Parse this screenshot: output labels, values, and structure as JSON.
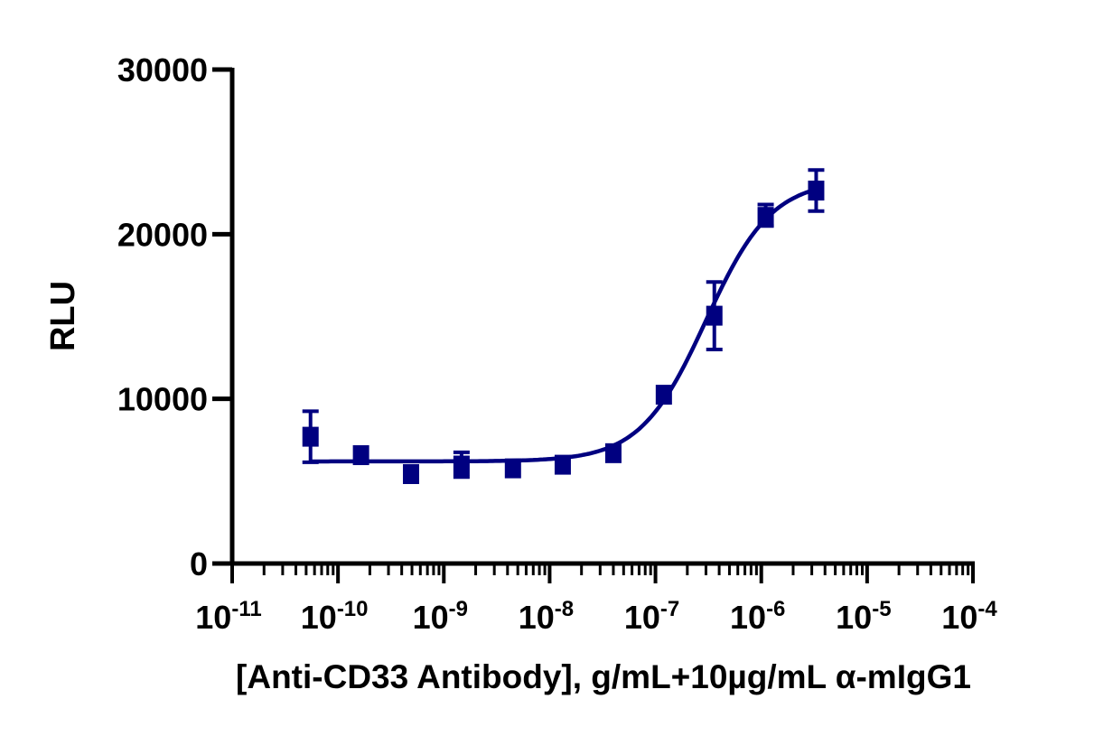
{
  "chart_data": {
    "type": "scatter",
    "title": "",
    "xlabel": "[Anti-CD33 Antibody], g/mL+10µg/mL α-mIgG1",
    "ylabel": "RLU",
    "x_scale": "log",
    "xlim": [
      1e-11,
      0.0001
    ],
    "ylim": [
      0,
      30000
    ],
    "x_ticks": [
      {
        "base": "10",
        "exp": "-11",
        "value": 1e-11
      },
      {
        "base": "10",
        "exp": "-10",
        "value": 1e-10
      },
      {
        "base": "10",
        "exp": "-9",
        "value": 1e-09
      },
      {
        "base": "10",
        "exp": "-8",
        "value": 1e-08
      },
      {
        "base": "10",
        "exp": "-7",
        "value": 1e-07
      },
      {
        "base": "10",
        "exp": "-6",
        "value": 1e-06
      },
      {
        "base": "10",
        "exp": "-5",
        "value": 1e-05
      },
      {
        "base": "10",
        "exp": "-4",
        "value": 0.0001
      }
    ],
    "y_ticks": [
      "0",
      "10000",
      "20000",
      "30000"
    ],
    "grid": false,
    "color": "#000080",
    "series": [
      {
        "marker": "square",
        "x": [
          5.5e-11,
          1.65e-10,
          4.9e-10,
          1.47e-09,
          4.5e-09,
          1.33e-08,
          4e-08,
          1.2e-07,
          3.6e-07,
          1.1e-06,
          3.3e-06
        ],
        "y": [
          7700,
          6580,
          5430,
          5950,
          5780,
          6000,
          6700,
          10250,
          15050,
          21050,
          22650
        ],
        "err_low": [
          6150,
          6580,
          5430,
          5250,
          5780,
          6000,
          6700,
          10250,
          13000,
          20500,
          21400
        ],
        "err_high": [
          9250,
          6580,
          5430,
          6750,
          5780,
          6000,
          6700,
          10250,
          17100,
          21800,
          23900
        ]
      }
    ],
    "fit_curve": {
      "model": "4PL",
      "bottom": 6200,
      "top": 23300,
      "ec50": 3e-07,
      "hill": 1.4
    }
  }
}
